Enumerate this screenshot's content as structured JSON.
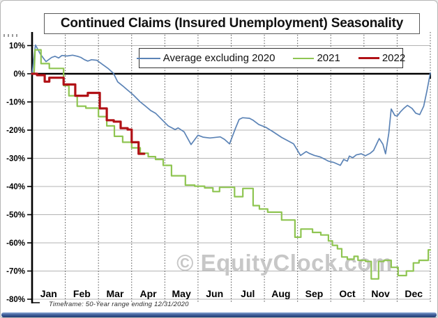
{
  "chart_data": {
    "type": "line",
    "title": "Continued Claims (Insured Unemployment) Seasonality",
    "note": "Timeframe: 50-Year range ending 12/31/2020",
    "watermark": "© EquityClock.com",
    "watermark_color": "#c7c7c7",
    "x_unit": "months (0 = Jan 1, 12 = Dec 31)",
    "x_months": [
      "Jan",
      "Feb",
      "Mar",
      "Apr",
      "May",
      "Jun",
      "Jul",
      "Aug",
      "Sep",
      "Oct",
      "Nov",
      "Dec"
    ],
    "y_ticks": [
      {
        "label": "10%",
        "value": 10
      },
      {
        "label": "0%",
        "value": 0
      },
      {
        "label": "-10%",
        "value": -10
      },
      {
        "label": "-20%",
        "value": -20
      },
      {
        "label": "-30%",
        "value": -30
      },
      {
        "label": "-40%",
        "value": -40
      },
      {
        "label": "-50%",
        "value": -50
      },
      {
        "label": "-60%",
        "value": -60
      },
      {
        "label": "-70%",
        "value": -70
      },
      {
        "label": "-80%",
        "value": -80
      }
    ],
    "ylim": [
      -80,
      10
    ],
    "grid": {
      "horizontal": "solid light gray",
      "vertical": "dashed dark gray at month boundaries",
      "zero_line": "thick black"
    },
    "legend_position": "top-center inside plot",
    "series": [
      {
        "name": "Average excluding 2020",
        "color": "#5b83b6",
        "stroke_width": 1.7,
        "style": "smooth polyline",
        "points": [
          [
            0,
            0
          ],
          [
            0.1,
            10.2
          ],
          [
            0.25,
            7.0
          ],
          [
            0.42,
            4.3
          ],
          [
            0.59,
            5.8
          ],
          [
            0.69,
            6.2
          ],
          [
            0.8,
            5.6
          ],
          [
            0.9,
            6.5
          ],
          [
            1.05,
            6.3
          ],
          [
            1.22,
            6.6
          ],
          [
            1.37,
            6.2
          ],
          [
            1.47,
            5.8
          ],
          [
            1.58,
            5.0
          ],
          [
            1.68,
            4.5
          ],
          [
            1.79,
            5.0
          ],
          [
            1.95,
            4.8
          ],
          [
            2.1,
            3.5
          ],
          [
            2.3,
            1.8
          ],
          [
            2.45,
            0.2
          ],
          [
            2.58,
            -2.9
          ],
          [
            2.73,
            -4.3
          ],
          [
            2.88,
            -5.8
          ],
          [
            3.05,
            -7.5
          ],
          [
            3.26,
            -10.0
          ],
          [
            3.42,
            -11.5
          ],
          [
            3.57,
            -13.0
          ],
          [
            3.72,
            -14.0
          ],
          [
            3.89,
            -16.0
          ],
          [
            4.1,
            -18.5
          ],
          [
            4.31,
            -19.8
          ],
          [
            4.4,
            -19.2
          ],
          [
            4.58,
            -20.6
          ],
          [
            4.79,
            -25.1
          ],
          [
            5.0,
            -21.8
          ],
          [
            5.15,
            -22.5
          ],
          [
            5.36,
            -22.8
          ],
          [
            5.67,
            -22.4
          ],
          [
            5.8,
            -23.3
          ],
          [
            5.95,
            -24.9
          ],
          [
            6.13,
            -19.3
          ],
          [
            6.24,
            -16.2
          ],
          [
            6.34,
            -15.6
          ],
          [
            6.55,
            -15.8
          ],
          [
            6.66,
            -16.5
          ],
          [
            6.83,
            -18.0
          ],
          [
            7.04,
            -19.0
          ],
          [
            7.25,
            -20.5
          ],
          [
            7.52,
            -22.6
          ],
          [
            7.71,
            -23.8
          ],
          [
            7.88,
            -24.9
          ],
          [
            8.09,
            -29.0
          ],
          [
            8.26,
            -27.6
          ],
          [
            8.36,
            -28.3
          ],
          [
            8.51,
            -29.0
          ],
          [
            8.68,
            -29.5
          ],
          [
            8.8,
            -30.2
          ],
          [
            8.93,
            -31.0
          ],
          [
            9.1,
            -31.5
          ],
          [
            9.29,
            -32.5
          ],
          [
            9.39,
            -30.4
          ],
          [
            9.5,
            -31.0
          ],
          [
            9.56,
            -29.2
          ],
          [
            9.66,
            -29.8
          ],
          [
            9.77,
            -28.8
          ],
          [
            9.92,
            -28.4
          ],
          [
            10.04,
            -29.1
          ],
          [
            10.19,
            -28.2
          ],
          [
            10.29,
            -27.2
          ],
          [
            10.46,
            -23.0
          ],
          [
            10.57,
            -25.0
          ],
          [
            10.65,
            -28.4
          ],
          [
            10.75,
            -21.0
          ],
          [
            10.82,
            -12.5
          ],
          [
            10.93,
            -14.8
          ],
          [
            11.0,
            -15.0
          ],
          [
            11.1,
            -13.5
          ],
          [
            11.2,
            -12.3
          ],
          [
            11.31,
            -11.2
          ],
          [
            11.45,
            -12.3
          ],
          [
            11.56,
            -14.0
          ],
          [
            11.68,
            -14.5
          ],
          [
            11.8,
            -11.5
          ],
          [
            11.9,
            -6.0
          ],
          [
            12.0,
            0.3
          ]
        ]
      },
      {
        "name": "2021",
        "color": "#8fc552",
        "stroke_width": 2.2,
        "style": "weekly steps",
        "points": [
          [
            0,
            0
          ],
          [
            0.06,
            0
          ],
          [
            0.09,
            8.5
          ],
          [
            0.27,
            8.5
          ],
          [
            0.27,
            3.6
          ],
          [
            0.52,
            3.6
          ],
          [
            0.52,
            1.9
          ],
          [
            0.95,
            1.9
          ],
          [
            0.95,
            -4.2
          ],
          [
            1.11,
            -4.2
          ],
          [
            1.11,
            -7.8
          ],
          [
            1.36,
            -7.8
          ],
          [
            1.36,
            -11.5
          ],
          [
            1.62,
            -11.5
          ],
          [
            1.62,
            -12.2
          ],
          [
            2.0,
            -12.2
          ],
          [
            2.0,
            -15.2
          ],
          [
            2.25,
            -15.2
          ],
          [
            2.25,
            -18.5
          ],
          [
            2.48,
            -18.5
          ],
          [
            2.48,
            -22.2
          ],
          [
            2.73,
            -22.2
          ],
          [
            2.73,
            -24.3
          ],
          [
            3.0,
            -24.3
          ],
          [
            3.0,
            -26.3
          ],
          [
            3.26,
            -26.3
          ],
          [
            3.26,
            -28.2
          ],
          [
            3.5,
            -28.2
          ],
          [
            3.5,
            -29.4
          ],
          [
            3.72,
            -29.4
          ],
          [
            3.72,
            -30.4
          ],
          [
            3.95,
            -30.4
          ],
          [
            3.95,
            -32.5
          ],
          [
            4.2,
            -32.5
          ],
          [
            4.2,
            -36.2
          ],
          [
            4.62,
            -36.2
          ],
          [
            4.62,
            -39.5
          ],
          [
            4.9,
            -39.5
          ],
          [
            4.9,
            -39.9
          ],
          [
            5.2,
            -39.9
          ],
          [
            5.2,
            -40.5
          ],
          [
            5.45,
            -40.5
          ],
          [
            5.45,
            -41.8
          ],
          [
            5.65,
            -41.8
          ],
          [
            5.65,
            -40.3
          ],
          [
            6.1,
            -40.3
          ],
          [
            6.1,
            -43.6
          ],
          [
            6.35,
            -43.6
          ],
          [
            6.35,
            -40.7
          ],
          [
            6.66,
            -40.7
          ],
          [
            6.66,
            -46.8
          ],
          [
            6.85,
            -46.8
          ],
          [
            6.85,
            -48.0
          ],
          [
            7.1,
            -48.0
          ],
          [
            7.1,
            -49.1
          ],
          [
            7.52,
            -49.1
          ],
          [
            7.52,
            -51.9
          ],
          [
            7.92,
            -51.9
          ],
          [
            7.92,
            -58.0
          ],
          [
            8.1,
            -58.0
          ],
          [
            8.1,
            -55.1
          ],
          [
            8.45,
            -55.1
          ],
          [
            8.45,
            -56.3
          ],
          [
            8.7,
            -56.3
          ],
          [
            8.7,
            -57.2
          ],
          [
            8.93,
            -57.2
          ],
          [
            8.93,
            -59.3
          ],
          [
            9.05,
            -59.3
          ],
          [
            9.05,
            -60.9
          ],
          [
            9.2,
            -60.9
          ],
          [
            9.2,
            -62.1
          ],
          [
            9.33,
            -62.1
          ],
          [
            9.33,
            -65.0
          ],
          [
            9.5,
            -65.0
          ],
          [
            9.5,
            -65.8
          ],
          [
            9.7,
            -65.8
          ],
          [
            9.7,
            -64.8
          ],
          [
            9.82,
            -64.8
          ],
          [
            9.82,
            -66.2
          ],
          [
            10.05,
            -66.2
          ],
          [
            10.05,
            -66.6
          ],
          [
            10.22,
            -66.6
          ],
          [
            10.22,
            -72.8
          ],
          [
            10.44,
            -72.8
          ],
          [
            10.44,
            -66.6
          ],
          [
            10.6,
            -66.6
          ],
          [
            10.6,
            -66.2
          ],
          [
            10.82,
            -66.2
          ],
          [
            10.82,
            -68.7
          ],
          [
            11.03,
            -68.7
          ],
          [
            11.03,
            -71.6
          ],
          [
            11.28,
            -71.6
          ],
          [
            11.28,
            -70.0
          ],
          [
            11.49,
            -70.0
          ],
          [
            11.49,
            -67.1
          ],
          [
            11.66,
            -67.1
          ],
          [
            11.66,
            -66.2
          ],
          [
            11.94,
            -66.2
          ],
          [
            11.94,
            -62.5
          ],
          [
            12.0,
            -62.5
          ]
        ]
      },
      {
        "name": "2022",
        "color": "#b11116",
        "stroke_width": 3.2,
        "style": "weekly steps, data ends mid-April",
        "points": [
          [
            0,
            0
          ],
          [
            0.15,
            0
          ],
          [
            0.15,
            -0.5
          ],
          [
            0.38,
            -0.5
          ],
          [
            0.38,
            -2.8
          ],
          [
            0.52,
            -2.8
          ],
          [
            0.52,
            -1.4
          ],
          [
            0.95,
            -1.4
          ],
          [
            0.95,
            -3.8
          ],
          [
            1.3,
            -3.8
          ],
          [
            1.3,
            -7.8
          ],
          [
            1.68,
            -7.8
          ],
          [
            1.68,
            -6.8
          ],
          [
            2.04,
            -6.8
          ],
          [
            2.04,
            -12.3
          ],
          [
            2.25,
            -12.3
          ],
          [
            2.25,
            -16.5
          ],
          [
            2.46,
            -16.5
          ],
          [
            2.46,
            -17.0
          ],
          [
            2.67,
            -17.0
          ],
          [
            2.67,
            -19.3
          ],
          [
            2.88,
            -19.3
          ],
          [
            2.88,
            -19.8
          ],
          [
            3.0,
            -19.8
          ],
          [
            3.0,
            -24.3
          ],
          [
            3.21,
            -24.3
          ],
          [
            3.21,
            -28.4
          ],
          [
            3.38,
            -28.4
          ]
        ]
      }
    ]
  }
}
